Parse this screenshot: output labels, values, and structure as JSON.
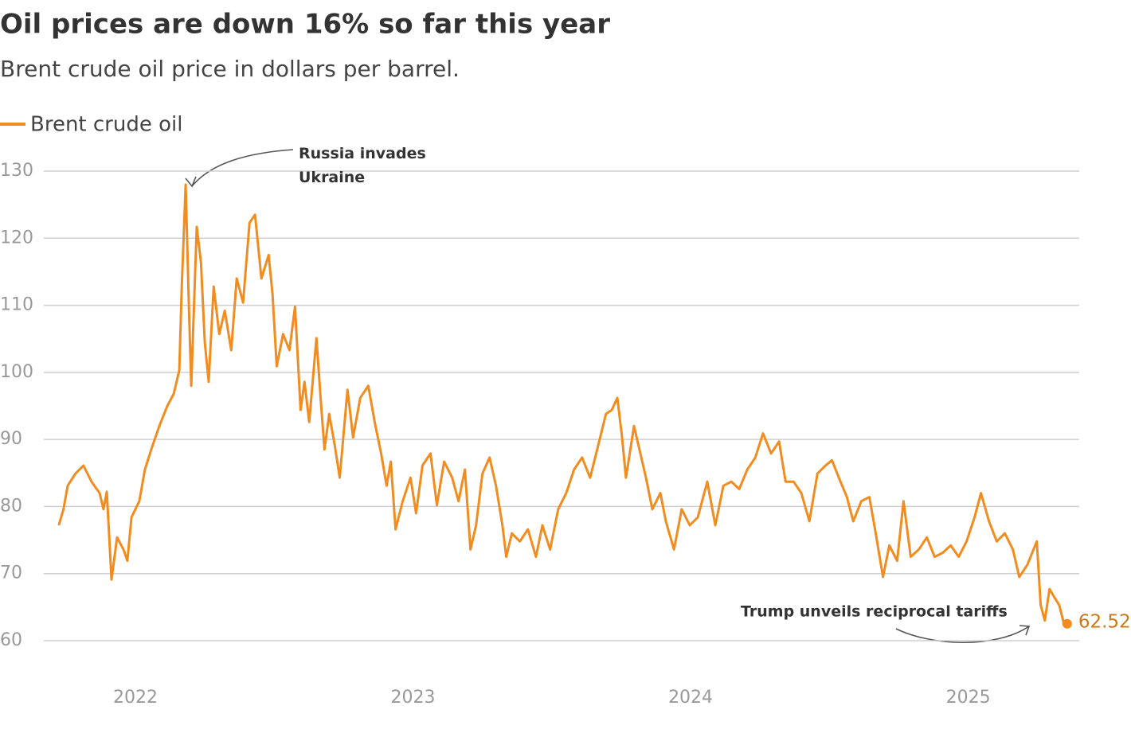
{
  "chart_data": {
    "type": "line",
    "title": "Oil prices are down 16% so far this year",
    "subtitle": "Brent crude oil price in dollars per barrel.",
    "annotations": [
      {
        "lines": [
          "Russia invades",
          "Ukraine"
        ]
      },
      {
        "lines": [
          "Trump unveils reciprocal tariffs"
        ]
      }
    ],
    "xlim": [
      2021.67,
      2025.4
    ],
    "xticks": [
      2022,
      2023,
      2024,
      2025
    ],
    "ylim": [
      60,
      130
    ],
    "yticks": [
      60,
      70,
      80,
      90,
      100,
      110,
      120,
      130
    ],
    "grid": true,
    "legend": "top-left",
    "series": [
      {
        "name": "Brent crude oil",
        "color": "#f28c1e",
        "x": [
          2021.724,
          2021.741,
          2021.756,
          2021.784,
          2021.813,
          2021.842,
          2021.871,
          2021.885,
          2021.897,
          2021.914,
          2021.934,
          2021.957,
          2021.971,
          2021.986,
          2022.014,
          2022.034,
          2022.057,
          2022.086,
          2022.115,
          2022.138,
          2022.158,
          2022.167,
          2022.181,
          2022.193,
          2022.201,
          2022.221,
          2022.236,
          2022.25,
          2022.264,
          2022.282,
          2022.302,
          2022.322,
          2022.345,
          2022.365,
          2022.388,
          2022.411,
          2022.431,
          2022.454,
          2022.48,
          2022.494,
          2022.509,
          2022.532,
          2022.555,
          2022.575,
          2022.595,
          2022.609,
          2022.626,
          2022.652,
          2022.667,
          2022.681,
          2022.698,
          2022.718,
          2022.736,
          2022.764,
          2022.784,
          2022.81,
          2022.839,
          2022.862,
          2022.885,
          2022.905,
          2022.92,
          2022.937,
          2022.963,
          2022.991,
          2023.011,
          2023.034,
          2023.063,
          2023.086,
          2023.112,
          2023.141,
          2023.164,
          2023.187,
          2023.207,
          2023.227,
          2023.25,
          2023.276,
          2023.299,
          2023.322,
          2023.336,
          2023.356,
          2023.385,
          2023.414,
          2023.443,
          2023.466,
          2023.494,
          2023.523,
          2023.552,
          2023.58,
          2023.609,
          2023.638,
          2023.667,
          2023.695,
          2023.716,
          2023.736,
          2023.753,
          2023.767,
          2023.796,
          2023.819,
          2023.839,
          2023.862,
          2023.891,
          2023.911,
          2023.94,
          2023.968,
          2023.997,
          2024.026,
          2024.06,
          2024.089,
          2024.118,
          2024.147,
          2024.175,
          2024.204,
          2024.233,
          2024.261,
          2024.29,
          2024.319,
          2024.342,
          2024.371,
          2024.399,
          2024.428,
          2024.457,
          2024.486,
          2024.509,
          2024.534,
          2024.563,
          2024.586,
          2024.615,
          2024.644,
          2024.667,
          2024.693,
          2024.716,
          2024.744,
          2024.767,
          2024.793,
          2024.822,
          2024.851,
          2024.879,
          2024.908,
          2024.937,
          2024.966,
          2024.994,
          2025.023,
          2025.046,
          2025.075,
          2025.103,
          2025.132,
          2025.161,
          2025.184,
          2025.213,
          2025.247,
          2025.261,
          2025.276,
          2025.293,
          2025.31,
          2025.328,
          2025.345
        ],
        "values": [
          77.2,
          79.6,
          83.1,
          84.9,
          86.1,
          83.7,
          82.0,
          79.6,
          82.2,
          69.1,
          75.4,
          73.6,
          71.9,
          78.4,
          80.8,
          85.5,
          88.5,
          92.0,
          95.0,
          96.8,
          100.3,
          112.8,
          128.0,
          109.2,
          98.0,
          121.7,
          116.4,
          104.5,
          98.6,
          112.8,
          105.7,
          109.2,
          103.3,
          114.0,
          110.4,
          122.3,
          123.5,
          114.0,
          117.5,
          111.6,
          100.9,
          105.7,
          103.3,
          109.8,
          94.4,
          98.6,
          92.6,
          105.1,
          96.2,
          88.5,
          93.8,
          89.1,
          84.3,
          97.4,
          90.3,
          96.2,
          98.0,
          92.6,
          87.9,
          83.1,
          86.7,
          76.6,
          80.8,
          84.3,
          79.0,
          86.1,
          87.9,
          80.2,
          86.7,
          84.3,
          80.8,
          85.5,
          73.6,
          77.2,
          84.9,
          87.3,
          83.1,
          77.2,
          72.5,
          76.0,
          74.8,
          76.6,
          72.5,
          77.2,
          73.6,
          79.6,
          82.0,
          85.5,
          87.3,
          84.3,
          89.1,
          93.8,
          94.4,
          96.2,
          90.3,
          84.3,
          92.0,
          87.9,
          84.3,
          79.6,
          82.0,
          77.8,
          73.6,
          79.6,
          77.2,
          78.4,
          83.7,
          77.2,
          83.1,
          83.7,
          82.6,
          85.5,
          87.3,
          90.9,
          87.9,
          89.7,
          83.7,
          83.7,
          82.0,
          77.8,
          84.9,
          86.1,
          86.9,
          84.3,
          81.4,
          77.8,
          80.8,
          81.4,
          76.0,
          69.5,
          74.2,
          71.9,
          80.8,
          72.5,
          73.6,
          75.4,
          72.5,
          73.1,
          74.2,
          72.5,
          74.8,
          78.4,
          82.0,
          77.8,
          74.8,
          76.0,
          73.6,
          69.5,
          71.3,
          74.8,
          65.3,
          63.0,
          67.7,
          66.5,
          65.3,
          62.52
        ]
      }
    ]
  }
}
